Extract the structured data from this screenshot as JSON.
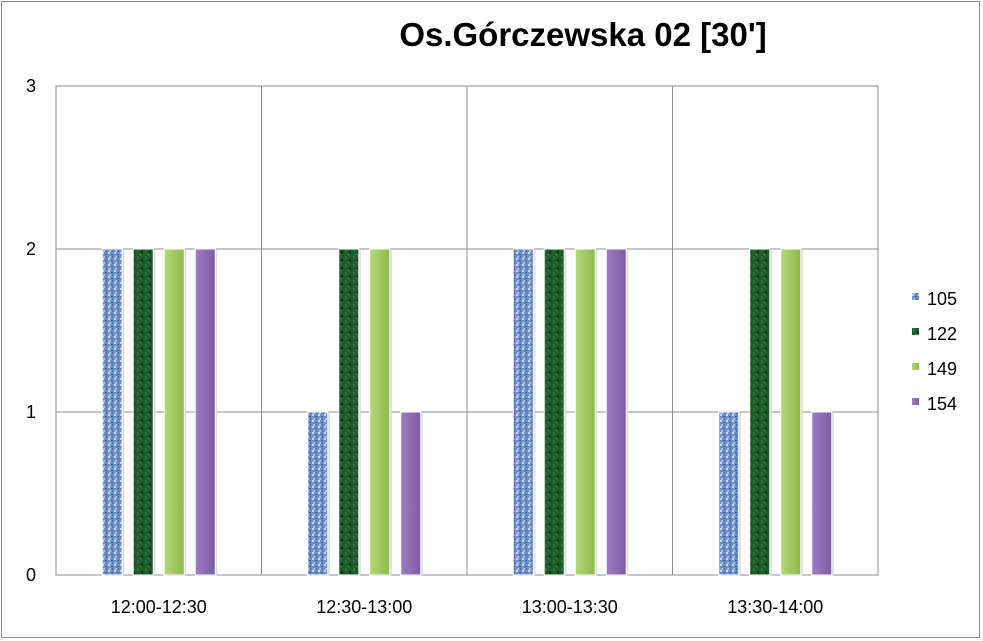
{
  "chart_data": {
    "type": "bar",
    "title": "Os.Górczewska 02 [30']",
    "xlabel": "",
    "ylabel": "",
    "categories": [
      "12:00-12:30",
      "12:30-13:00",
      "13:00-13:30",
      "13:30-14:00"
    ],
    "series": [
      {
        "name": "105",
        "values": [
          2,
          1,
          2,
          1
        ],
        "color": "#6f8fc8"
      },
      {
        "name": "122",
        "values": [
          2,
          2,
          2,
          2
        ],
        "color": "#1f5a2a"
      },
      {
        "name": "149",
        "values": [
          2,
          2,
          2,
          2
        ],
        "color": "#9bc45a"
      },
      {
        "name": "154",
        "values": [
          2,
          1,
          2,
          1
        ],
        "color": "#8d6bb0"
      }
    ],
    "ylim": [
      0,
      3
    ],
    "yticks": [
      "0",
      "1",
      "2",
      "3"
    ],
    "grid": true,
    "legend": "right"
  }
}
